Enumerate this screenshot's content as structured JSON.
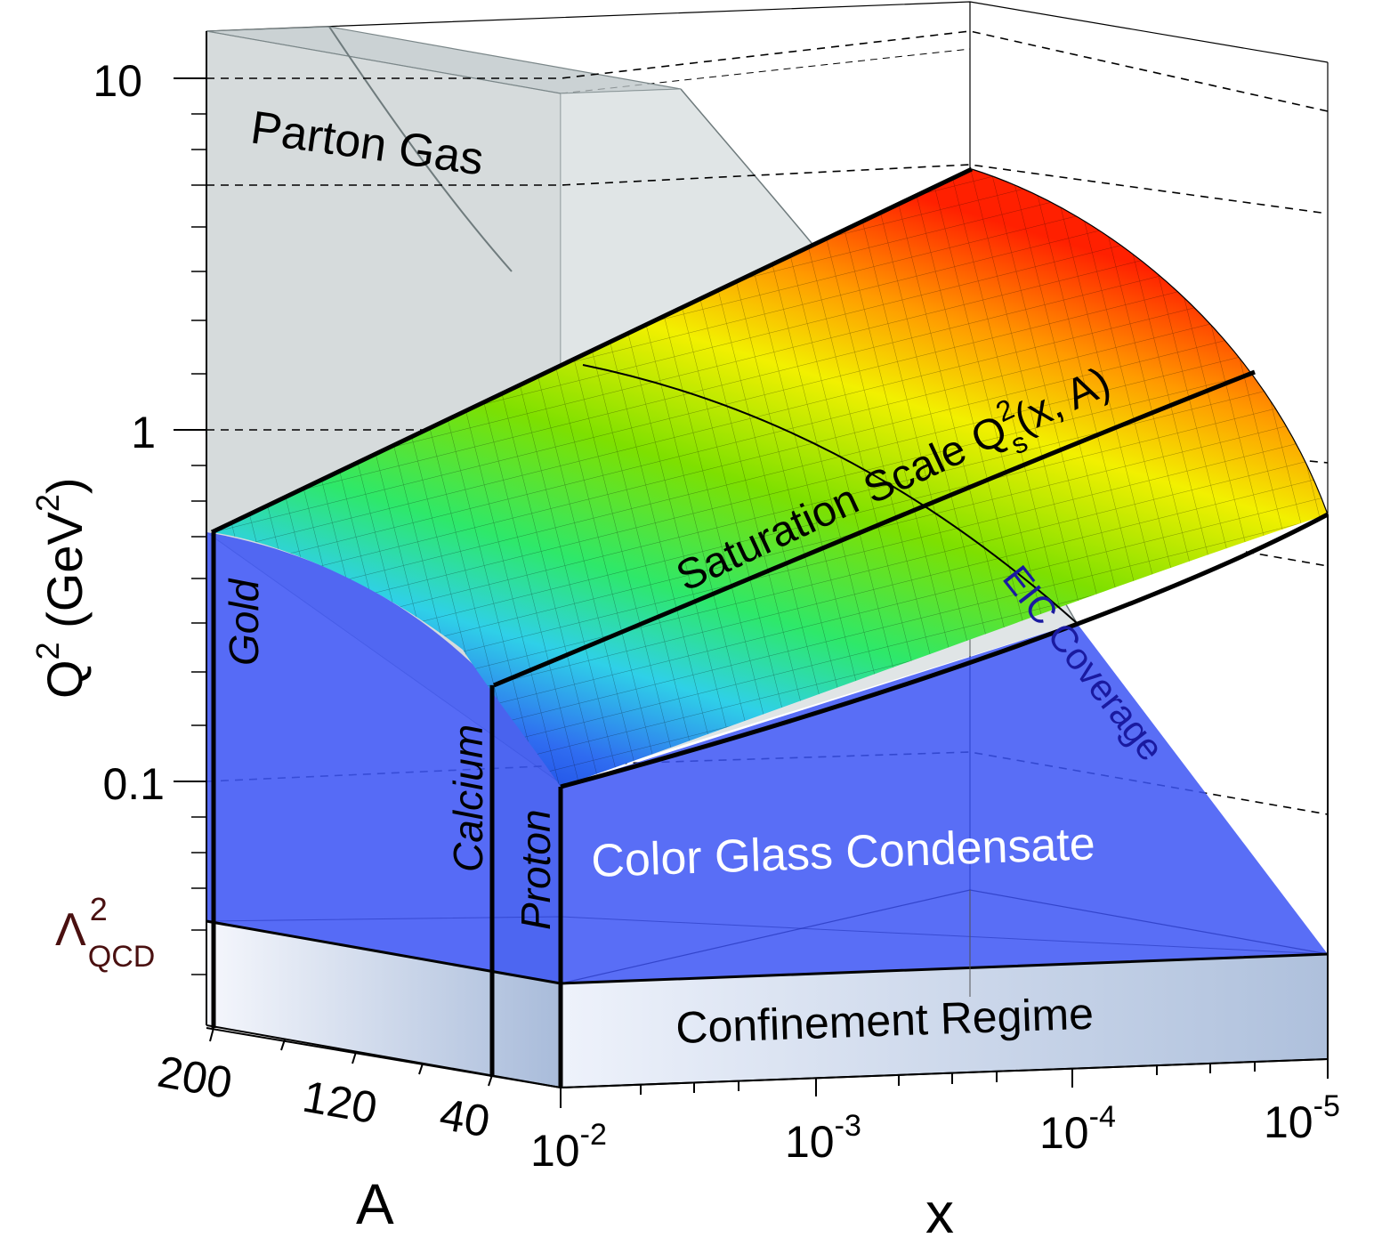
{
  "labels": {
    "parton_gas": "Parton Gas",
    "saturation_main": "Saturation Scale Q",
    "saturation_sup": "2",
    "saturation_sub": "s",
    "saturation_args": "(x, A)",
    "eic_coverage": "EIC Coverage",
    "color_glass": "Color Glass Condensate",
    "confinement": "Confinement Regime",
    "gold": "Gold",
    "calcium": "Calcium",
    "proton": "Proton"
  },
  "axes": {
    "q2_axis": {
      "label_main": "Q",
      "label_sup": "2",
      "label_unit_open": " (GeV",
      "label_unit_sup": "2",
      "label_unit_close": ")",
      "ticks": [
        "10",
        "1",
        "0.1"
      ],
      "lambda_main": "Λ",
      "lambda_sup": "2",
      "lambda_sub": "QCD",
      "scale": "log"
    },
    "a_axis": {
      "label": "A",
      "ticks": [
        "200",
        "120",
        "40"
      ]
    },
    "x_axis": {
      "label": "x",
      "ticks": [
        {
          "base": "10",
          "exp": "-2"
        },
        {
          "base": "10",
          "exp": "-3"
        },
        {
          "base": "10",
          "exp": "-4"
        },
        {
          "base": "10",
          "exp": "-5"
        }
      ],
      "scale": "log"
    }
  },
  "colors": {
    "parton_gas_fill": "#b4bec0",
    "cgc_fill": "#3c55f5",
    "confinement_fill": "#c2d0e6",
    "surface_high": "#ff2a00",
    "surface_mid": "#7ce000",
    "surface_low": "#1a35e6",
    "eic_text": "#1a1aa0",
    "lambda_text": "#4a1010"
  }
}
